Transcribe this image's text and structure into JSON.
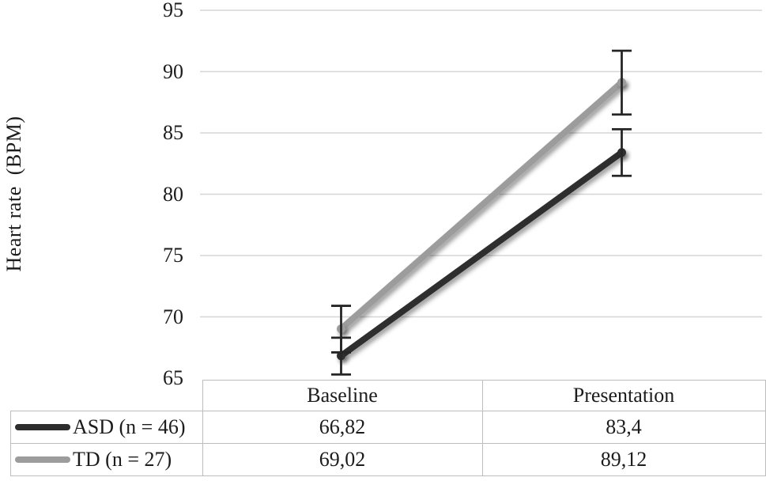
{
  "figure": {
    "ylabel_display": "Heart rate  (BPM)"
  },
  "axis": {
    "yticks": [
      "95",
      "90",
      "85",
      "80",
      "75",
      "70",
      "65"
    ]
  },
  "chart_data": {
    "type": "line",
    "title": "",
    "xlabel": "",
    "ylabel": "Heart rate (BPM)",
    "categories": [
      "Baseline",
      "Presentation"
    ],
    "series": [
      {
        "name": "ASD (n = 46)",
        "values": [
          66.82,
          83.4
        ],
        "color": "#2d2d2d",
        "error_low": [
          65.3,
          81.5
        ],
        "error_high": [
          68.3,
          85.3
        ]
      },
      {
        "name": "TD (n = 27)",
        "values": [
          69.02,
          89.12
        ],
        "color": "#9c9c9c",
        "error_low": [
          67.1,
          86.5
        ],
        "error_high": [
          70.9,
          91.7
        ]
      }
    ],
    "ylim": [
      65,
      95
    ],
    "yticks": [
      65,
      70,
      75,
      80,
      85,
      90,
      95
    ],
    "grid": true,
    "legend_position": "table rows bottom-left",
    "line_width": 8,
    "markers": "round"
  },
  "table": {
    "column_headers": [
      "Baseline",
      "Presentation"
    ],
    "rows": [
      {
        "label": "ASD (n = 46)",
        "values": [
          "66,82",
          "83,4"
        ]
      },
      {
        "label": "TD (n = 27)",
        "values": [
          "69,02",
          "89,12"
        ]
      }
    ]
  },
  "colors": {
    "gridline": "#d6d6d6",
    "error_bar": "#262626",
    "table_border": "#bdbdbd",
    "text": "#1c1c1c",
    "background": "#ffffff"
  }
}
